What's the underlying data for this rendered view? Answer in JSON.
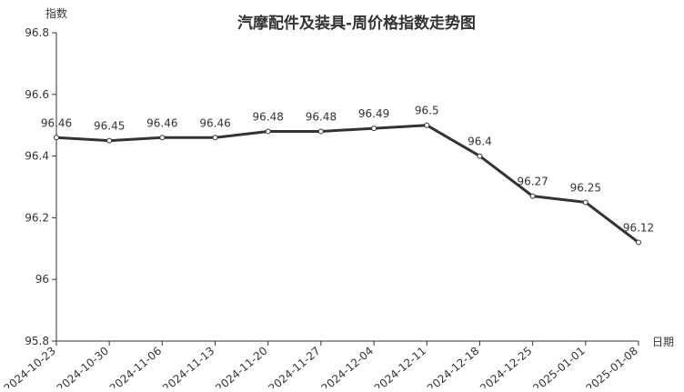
{
  "chart_data": {
    "type": "line",
    "title": "汽摩配件及装具-周价格指数走势图",
    "xlabel": "日期",
    "ylabel": "指数",
    "ylim": [
      95.8,
      96.8
    ],
    "yticks": [
      "95.8",
      "96",
      "96.2",
      "96.4",
      "96.6",
      "96.8"
    ],
    "categories": [
      "2024-10-23",
      "2024-10-30",
      "2024-11-06",
      "2024-11-13",
      "2024-11-20",
      "2024-11-27",
      "2024-12-04",
      "2024-12-11",
      "2024-12-18",
      "2024-12-25",
      "2025-01-01",
      "2025-01-08"
    ],
    "values": [
      96.46,
      96.45,
      96.46,
      96.46,
      96.48,
      96.48,
      96.49,
      96.5,
      96.4,
      96.27,
      96.25,
      96.12
    ],
    "grid": false,
    "line_color": "#333333"
  }
}
